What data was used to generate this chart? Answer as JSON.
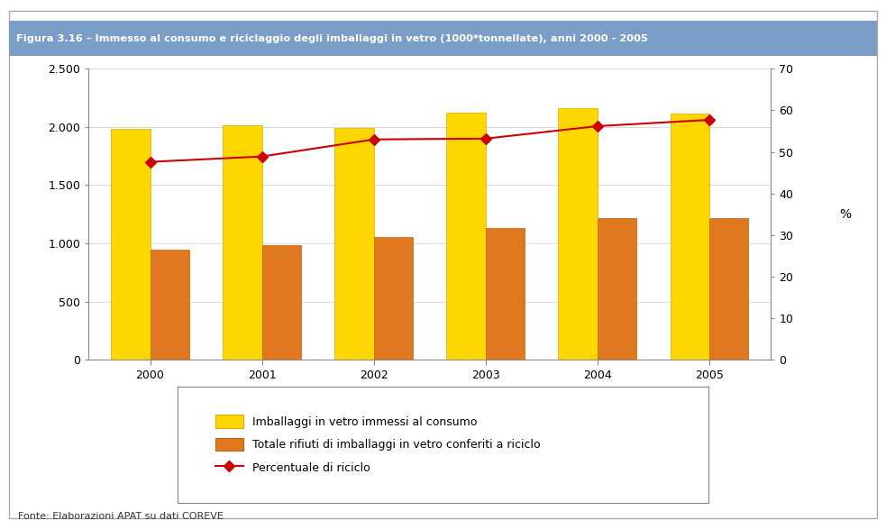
{
  "years": [
    2000,
    2001,
    2002,
    2003,
    2004,
    2005
  ],
  "immessi": [
    1985,
    2015,
    1990,
    2125,
    2160,
    2115
  ],
  "riciclo": [
    945,
    985,
    1055,
    1130,
    1215,
    1220
  ],
  "percentuale": [
    47.6,
    48.9,
    53.0,
    53.2,
    56.2,
    57.7
  ],
  "bar_color_immessi": "#FFD700",
  "bar_color_riciclo": "#E07820",
  "line_color": "#CC0000",
  "marker_color": "#CC0000",
  "title": "Figura 3.16 – Immesso al consumo e riciclaggio degli imballaggi in vetro (1000*tonnellate), anni 2000 - 2005",
  "title_bg_color": "#7B9EC8",
  "title_text_color": "#ffffff",
  "ylabel_right": "%",
  "ylim_left": [
    0,
    2500
  ],
  "ylim_right": [
    0,
    70
  ],
  "yticks_left": [
    0,
    500,
    1000,
    1500,
    2000,
    2500
  ],
  "yticks_right": [
    0,
    10,
    20,
    30,
    40,
    50,
    60,
    70
  ],
  "legend_label_1": "Imballaggi in vetro immessi al consumo",
  "legend_label_2": "Totale rifiuti di imballaggi in vetro conferiti a riciclo",
  "legend_label_3": "Percentuale di riciclo",
  "fonte": "Fonte: Elaborazioni APAT su dati COREVE",
  "bg_color": "#ffffff",
  "bar_width": 0.35
}
